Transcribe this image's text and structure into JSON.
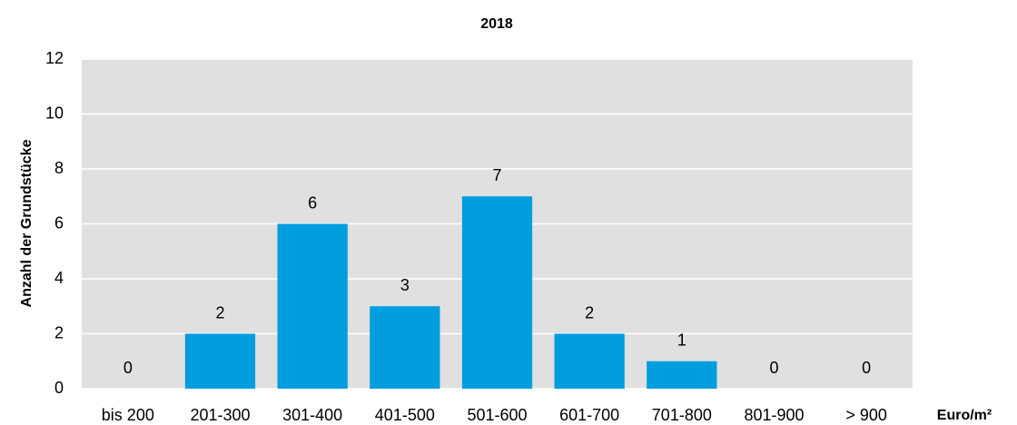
{
  "chart_data": {
    "type": "bar",
    "title": "2018",
    "categories": [
      "bis 200",
      "201-300",
      "301-400",
      "401-500",
      "501-600",
      "601-700",
      "701-800",
      "801-900",
      "> 900"
    ],
    "values": [
      0,
      2,
      6,
      3,
      7,
      2,
      1,
      0,
      0
    ],
    "color": "#009ddf",
    "ylim": [
      0,
      12
    ],
    "yticks": [
      0,
      2,
      4,
      6,
      8,
      10,
      12
    ],
    "grid": true,
    "x_label": "Euro/m²",
    "y_label": "Anzahl der Grundstücke"
  }
}
